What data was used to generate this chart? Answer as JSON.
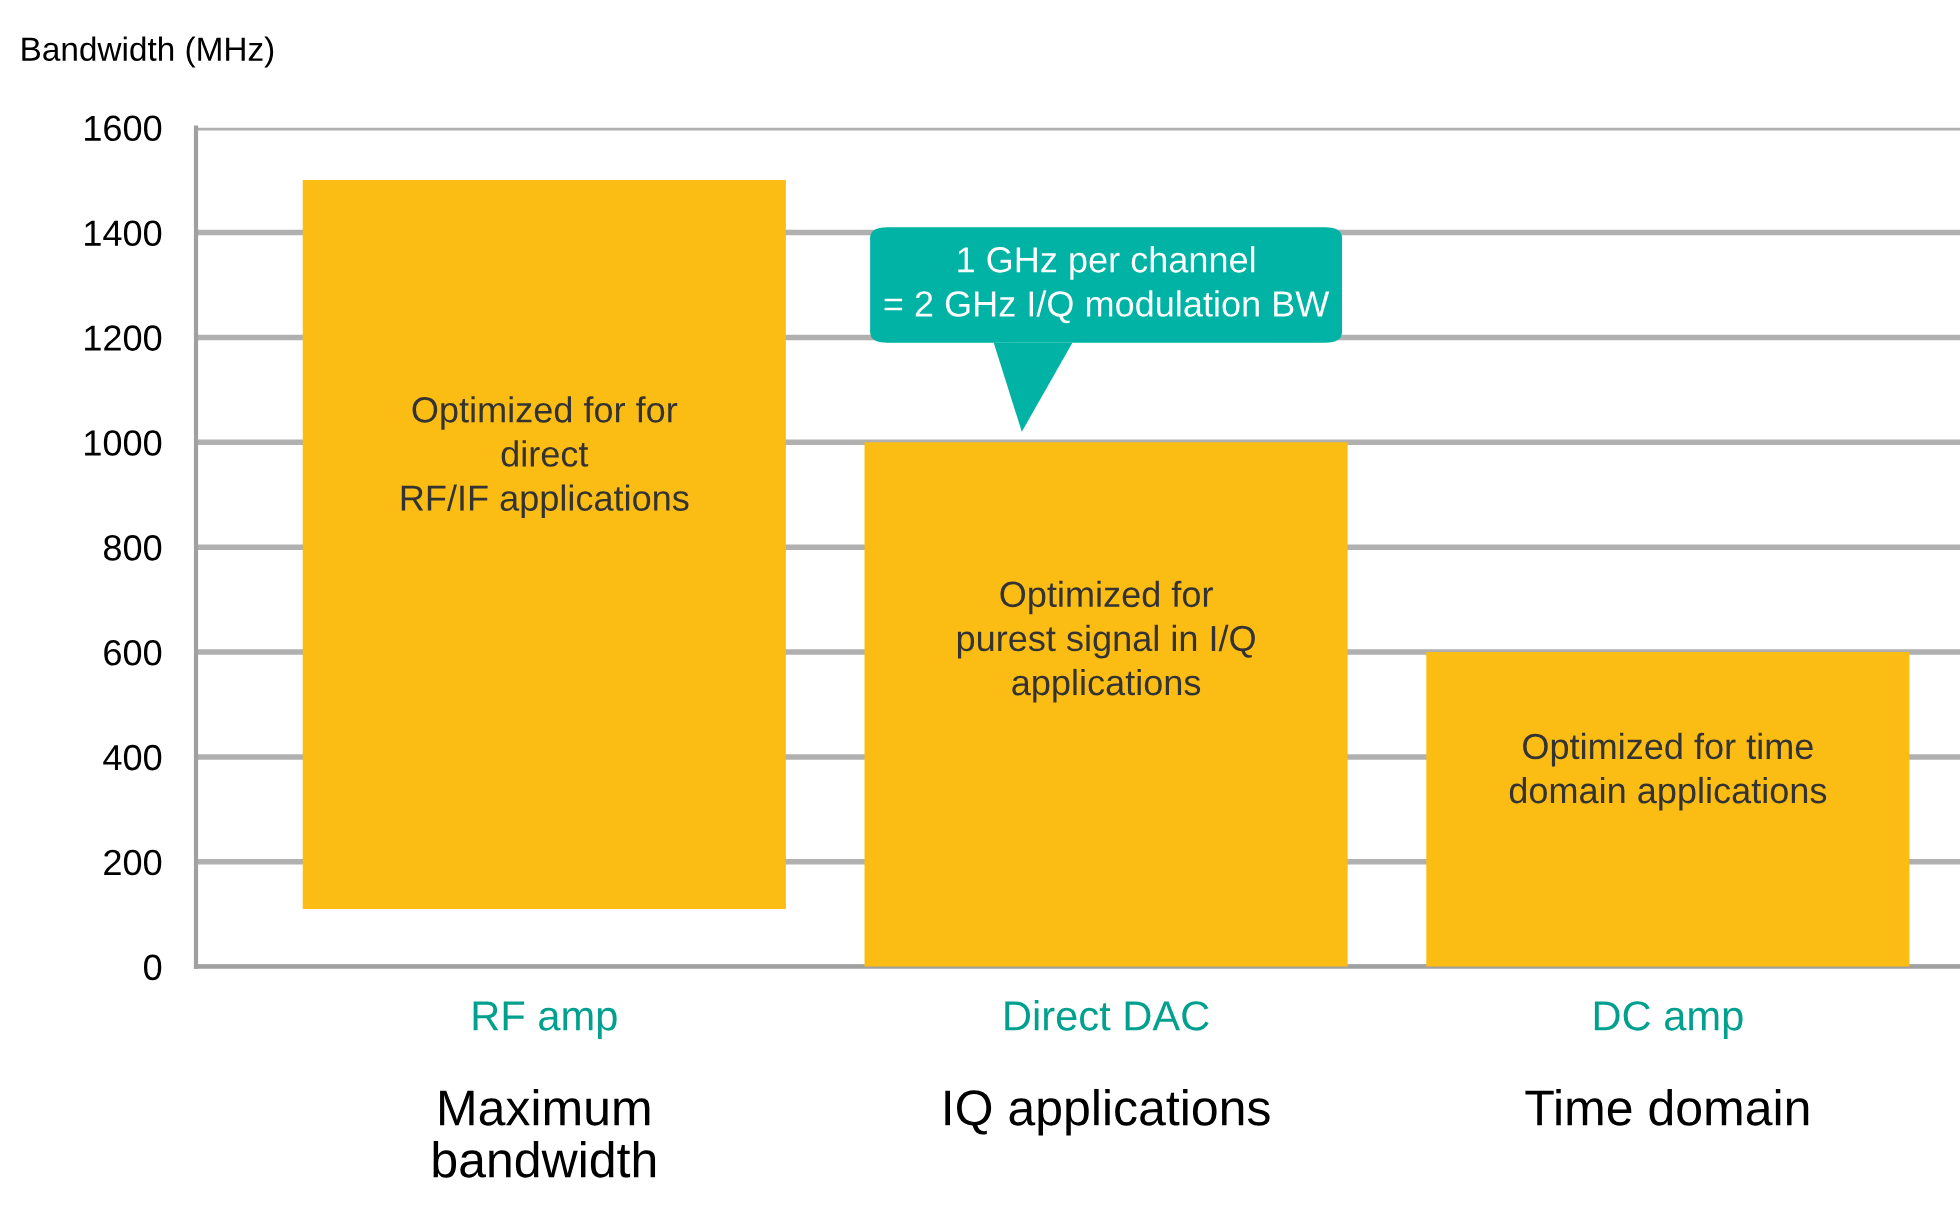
{
  "chart_data": {
    "type": "bar",
    "ylabel": "Bandwidth (MHz)",
    "categories": [
      "RF amp",
      "Direct DAC",
      "DC amp"
    ],
    "base": [
      110,
      0,
      0
    ],
    "values": [
      1390,
      1000,
      600
    ],
    "color": "#fbbc14",
    "ylim": [
      0,
      1600
    ],
    "yticks": [
      0,
      200,
      400,
      600,
      800,
      1000,
      1200,
      1400,
      1600
    ],
    "grid": "y",
    "annotations": [
      "Maximum\nbandwidth",
      "IQ applications",
      "Time domain",
      "Optimized for for\ndirect\nRF/IF applications",
      "Optimized for\npurest signal in I/Q\napplications",
      "Optimized for time\ndomain applications",
      "1 GHz per channel\n= 2 GHz I/Q modulation BW"
    ]
  }
}
